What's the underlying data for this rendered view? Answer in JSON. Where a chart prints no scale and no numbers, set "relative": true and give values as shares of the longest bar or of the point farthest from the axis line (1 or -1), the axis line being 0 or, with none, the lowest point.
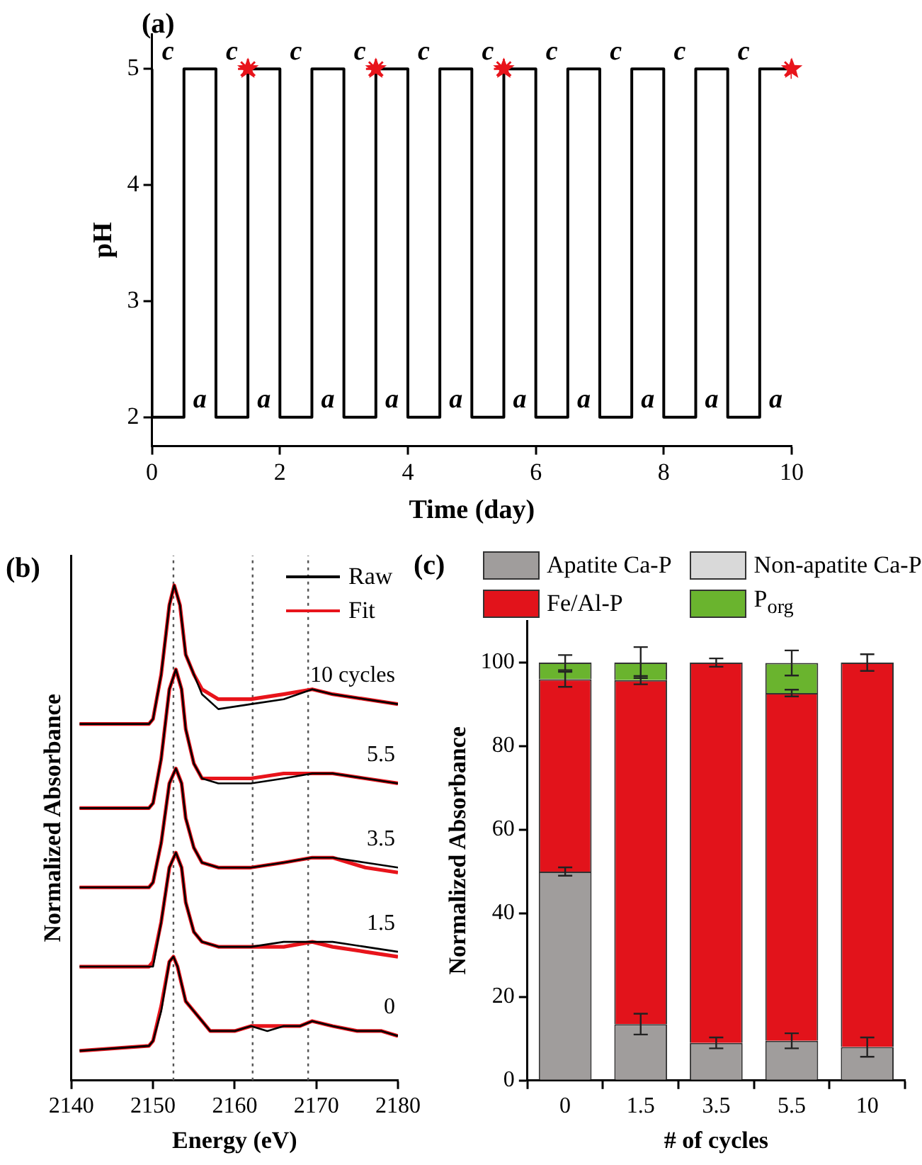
{
  "chart_data": [
    {
      "type": "step",
      "title": "(a)",
      "xlabel": "Time (day)",
      "ylabel": "pH",
      "xlim": [
        0,
        10
      ],
      "xticks": [
        0,
        2,
        4,
        6,
        8,
        10
      ],
      "ylim": [
        1.75,
        5.3
      ],
      "yticks": [
        2,
        3,
        4,
        5
      ],
      "x": [
        0,
        0.5,
        1,
        1.5,
        2,
        2.5,
        3,
        3.5,
        4,
        4.5,
        5,
        5.5,
        6,
        6.5,
        7,
        7.5,
        8,
        8.5,
        9,
        9.5,
        10
      ],
      "series": [
        {
          "color": "#000000",
          "values": [
            5,
            2,
            5,
            2,
            5,
            2,
            5,
            2,
            5,
            2,
            5,
            2,
            5,
            2,
            5,
            2,
            5,
            2,
            5,
            2,
            5
          ]
        },
        {
          "type": "scatter",
          "marker": "star",
          "color": "#e8141b",
          "x": [
            1.5,
            3.5,
            5.5,
            10
          ],
          "values": [
            5,
            5,
            5,
            5
          ]
        }
      ],
      "annotations": [
        "c",
        "c",
        "c",
        "c",
        "c",
        "c",
        "c",
        "c",
        "c",
        "c",
        "a",
        "a",
        "a",
        "a",
        "a",
        "a",
        "a",
        "a",
        "a",
        "a"
      ]
    },
    {
      "type": "line",
      "relative": true,
      "title": "(b)",
      "xlabel": "Energy (eV)",
      "ylabel": "Normalized Absorbance",
      "xlim": [
        2140,
        2180
      ],
      "xticks": [
        2140,
        2150,
        2160,
        2170,
        2180
      ],
      "legend": "top right",
      "series": [
        {
          "name": "Raw",
          "color": "#000000",
          "x": [
            2141,
            2149.5,
            2150,
            2151,
            2152,
            2152.6,
            2153.3,
            2154,
            2155,
            2156,
            2158,
            2162,
            2166,
            2169.5,
            2172,
            2176,
            2180
          ],
          "values": [
            0.72,
            0.72,
            0.73,
            0.82,
            0.96,
            1.0,
            0.96,
            0.86,
            0.82,
            0.78,
            0.75,
            0.76,
            0.77,
            0.79,
            0.78,
            0.77,
            0.76
          ]
        },
        {
          "name": "Fit",
          "color": "#e8141b",
          "x": [
            2141,
            2149.5,
            2150,
            2151,
            2152,
            2152.6,
            2153.3,
            2154,
            2155,
            2156,
            2158,
            2162,
            2166,
            2169.5,
            2172,
            2176,
            2180
          ],
          "values": [
            0.72,
            0.72,
            0.73,
            0.82,
            0.96,
            1.0,
            0.96,
            0.86,
            0.82,
            0.79,
            0.77,
            0.77,
            0.78,
            0.79,
            0.78,
            0.77,
            0.76
          ]
        },
        {
          "color": "#000000",
          "x": [
            2141,
            2149.5,
            2150,
            2151,
            2152,
            2152.8,
            2153.5,
            2154,
            2155,
            2156,
            2158,
            2162,
            2166,
            2169.5,
            2172,
            2176,
            2180
          ],
          "values": [
            0.55,
            0.55,
            0.56,
            0.65,
            0.79,
            0.83,
            0.79,
            0.71,
            0.64,
            0.61,
            0.6,
            0.6,
            0.61,
            0.62,
            0.62,
            0.61,
            0.6
          ]
        },
        {
          "color": "#e8141b",
          "x": [
            2141,
            2149.5,
            2150,
            2151,
            2152,
            2152.8,
            2153.5,
            2154,
            2155,
            2156,
            2158,
            2162,
            2166,
            2169.5,
            2172,
            2176,
            2180
          ],
          "values": [
            0.55,
            0.55,
            0.56,
            0.65,
            0.79,
            0.83,
            0.79,
            0.71,
            0.64,
            0.61,
            0.61,
            0.61,
            0.62,
            0.62,
            0.62,
            0.61,
            0.6
          ]
        },
        {
          "color": "#000000",
          "x": [
            2141,
            2149.5,
            2150,
            2151,
            2152,
            2152.8,
            2153.5,
            2154,
            2155,
            2156,
            2158,
            2162,
            2166,
            2169.5,
            2172,
            2176,
            2180
          ],
          "values": [
            0.39,
            0.39,
            0.4,
            0.48,
            0.6,
            0.63,
            0.6,
            0.53,
            0.47,
            0.44,
            0.43,
            0.43,
            0.44,
            0.45,
            0.45,
            0.44,
            0.43
          ]
        },
        {
          "color": "#e8141b",
          "x": [
            2141,
            2149.5,
            2150,
            2151,
            2152,
            2152.8,
            2153.5,
            2154,
            2155,
            2156,
            2158,
            2162,
            2166,
            2169.5,
            2172,
            2176,
            2180
          ],
          "values": [
            0.39,
            0.39,
            0.4,
            0.48,
            0.6,
            0.63,
            0.6,
            0.53,
            0.47,
            0.44,
            0.43,
            0.43,
            0.44,
            0.45,
            0.45,
            0.43,
            0.42
          ]
        },
        {
          "color": "#000000",
          "x": [
            2141,
            2149.5,
            2150,
            2151,
            2152,
            2152.8,
            2153.5,
            2154,
            2155,
            2156,
            2158,
            2162,
            2166,
            2169.5,
            2172,
            2176,
            2180
          ],
          "values": [
            0.23,
            0.23,
            0.23,
            0.32,
            0.43,
            0.46,
            0.43,
            0.36,
            0.3,
            0.28,
            0.27,
            0.27,
            0.28,
            0.28,
            0.28,
            0.27,
            0.26
          ]
        },
        {
          "color": "#e8141b",
          "x": [
            2141,
            2149.5,
            2150,
            2151,
            2152,
            2152.8,
            2153.5,
            2154,
            2155,
            2156,
            2158,
            2162,
            2166,
            2169.5,
            2172,
            2176,
            2180
          ],
          "values": [
            0.23,
            0.23,
            0.24,
            0.32,
            0.43,
            0.46,
            0.43,
            0.36,
            0.3,
            0.28,
            0.27,
            0.27,
            0.27,
            0.28,
            0.27,
            0.26,
            0.25
          ]
        },
        {
          "color": "#000000",
          "x": [
            2141,
            2149.5,
            2150,
            2151,
            2152,
            2152.5,
            2153,
            2154,
            2155,
            2156,
            2157,
            2158,
            2160,
            2162,
            2164,
            2166,
            2168,
            2169.5,
            2172,
            2175,
            2178,
            2180
          ],
          "values": [
            0.06,
            0.07,
            0.08,
            0.14,
            0.24,
            0.25,
            0.23,
            0.16,
            0.14,
            0.12,
            0.1,
            0.1,
            0.1,
            0.11,
            0.1,
            0.11,
            0.11,
            0.12,
            0.11,
            0.1,
            0.1,
            0.09
          ]
        },
        {
          "color": "#e8141b",
          "x": [
            2141,
            2149.5,
            2150,
            2151,
            2152,
            2152.5,
            2153,
            2154,
            2155,
            2156,
            2157,
            2158,
            2160,
            2162,
            2164,
            2166,
            2168,
            2169.5,
            2172,
            2175,
            2178,
            2180
          ],
          "values": [
            0.06,
            0.07,
            0.08,
            0.15,
            0.24,
            0.25,
            0.23,
            0.16,
            0.14,
            0.12,
            0.1,
            0.1,
            0.1,
            0.11,
            0.11,
            0.11,
            0.11,
            0.12,
            0.11,
            0.1,
            0.1,
            0.09
          ]
        }
      ],
      "ref_lines": [
        {
          "axis": "x",
          "value": 2152.5,
          "line_style": "dotted",
          "color": "#555555"
        },
        {
          "axis": "x",
          "value": 2162.2,
          "line_style": "dotted",
          "color": "#555555"
        },
        {
          "axis": "x",
          "value": 2169,
          "line_style": "dotted",
          "color": "#555555"
        }
      ],
      "annotations": [
        "10 cycles",
        "5.5",
        "3.5",
        "1.5",
        "0"
      ]
    },
    {
      "type": "bar",
      "stacked": true,
      "title": "(c)",
      "xlabel": "# of cycles",
      "ylabel": "Normalized Absorbance",
      "legend": "top",
      "categories": [
        "0",
        "1.5",
        "3.5",
        "5.5",
        "10"
      ],
      "ylim": [
        0,
        110
      ],
      "yticks": [
        0,
        20,
        40,
        60,
        80,
        100
      ],
      "series": [
        {
          "name": "Apatite Ca-P",
          "color": "#a09d9c",
          "values": [
            50,
            13.5,
            9,
            9.5,
            8
          ],
          "errors": [
            1,
            2.5,
            1.3,
            1.8,
            2.3
          ]
        },
        {
          "name": "Non-apatite Ca-P",
          "color": "#d9d9d9",
          "values": [
            0,
            0,
            0,
            0,
            0
          ]
        },
        {
          "name": "Fe/Al-P",
          "color": "#e2131b",
          "values": [
            46,
            82.3,
            91,
            83.2,
            92
          ],
          "errors": [
            1.8,
            1,
            1,
            0.8,
            2
          ]
        },
        {
          "name": "P$_{org}$",
          "color": "#6ab42e",
          "values": [
            4,
            4.2,
            0,
            7.2,
            0
          ],
          "errors": [
            1.8,
            3.7,
            null,
            3,
            null
          ]
        }
      ]
    }
  ]
}
